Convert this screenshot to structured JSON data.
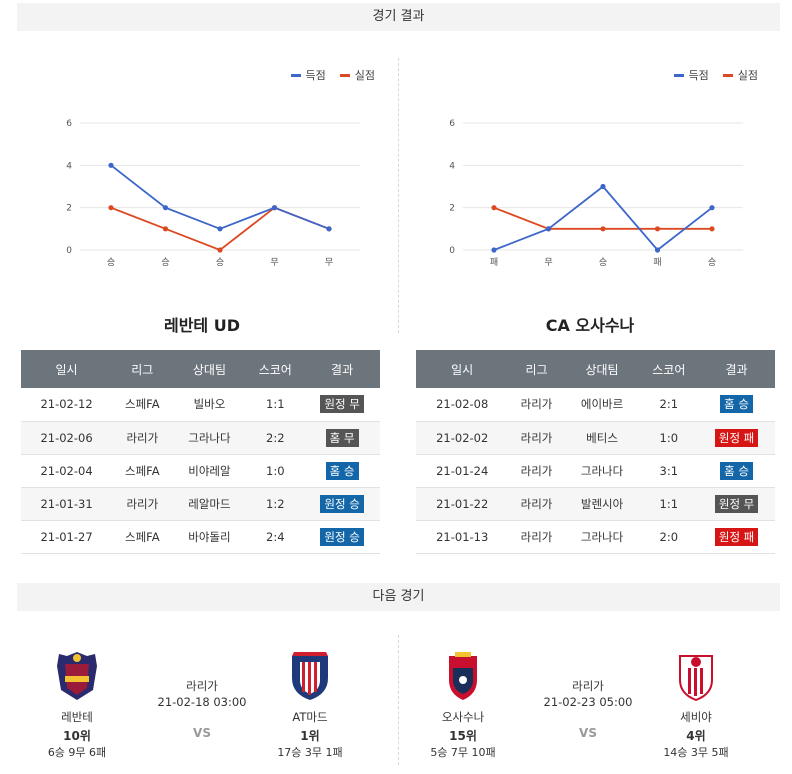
{
  "sections": {
    "results_title": "경기 결과",
    "next_title": "다음 경기"
  },
  "legend": {
    "scored": "득점",
    "conceded": "실점"
  },
  "colors": {
    "scored": "#3d66c9",
    "conceded": "#db4a22",
    "win": "#1366a8",
    "draw": "#555555",
    "loss": "#d61515"
  },
  "chart_data": [
    {
      "type": "line",
      "title": "",
      "categories": [
        "승",
        "승",
        "승",
        "무",
        "무"
      ],
      "series": [
        {
          "name": "득점",
          "values": [
            4,
            2,
            1,
            2,
            1
          ]
        },
        {
          "name": "실점",
          "values": [
            2,
            1,
            0,
            2,
            1
          ]
        }
      ],
      "yticks": [
        0,
        2,
        4,
        6
      ],
      "ylim": [
        0,
        6
      ],
      "grid": true,
      "legend": "top-right"
    },
    {
      "type": "line",
      "title": "",
      "categories": [
        "패",
        "무",
        "승",
        "패",
        "승"
      ],
      "series": [
        {
          "name": "득점",
          "values": [
            0,
            1,
            3,
            0,
            2
          ]
        },
        {
          "name": "실점",
          "values": [
            2,
            1,
            1,
            1,
            1
          ]
        }
      ],
      "yticks": [
        0,
        2,
        4,
        6
      ],
      "ylim": [
        0,
        6
      ],
      "grid": true,
      "legend": "top-right"
    }
  ],
  "teams": {
    "left": {
      "title": "레반테 UD"
    },
    "right": {
      "title": "CA 오사수나"
    }
  },
  "table_headers": [
    "일시",
    "리그",
    "상대팀",
    "스코어",
    "결과"
  ],
  "left_results": [
    {
      "date": "21-02-12",
      "league": "스페FA",
      "opponent": "빌바오",
      "score": "1:1",
      "result": "원정 무",
      "type": "draw"
    },
    {
      "date": "21-02-06",
      "league": "라리가",
      "opponent": "그라나다",
      "score": "2:2",
      "result": "홈 무",
      "type": "draw"
    },
    {
      "date": "21-02-04",
      "league": "스페FA",
      "opponent": "비야레알",
      "score": "1:0",
      "result": "홈 승",
      "type": "win"
    },
    {
      "date": "21-01-31",
      "league": "라리가",
      "opponent": "레알마드",
      "score": "1:2",
      "result": "원정 승",
      "type": "win"
    },
    {
      "date": "21-01-27",
      "league": "스페FA",
      "opponent": "바야돌리",
      "score": "2:4",
      "result": "원정 승",
      "type": "win"
    }
  ],
  "right_results": [
    {
      "date": "21-02-08",
      "league": "라리가",
      "opponent": "에이바르",
      "score": "2:1",
      "result": "홈 승",
      "type": "win"
    },
    {
      "date": "21-02-02",
      "league": "라리가",
      "opponent": "베티스",
      "score": "1:0",
      "result": "원정 패",
      "type": "loss"
    },
    {
      "date": "21-01-24",
      "league": "라리가",
      "opponent": "그라나다",
      "score": "3:1",
      "result": "홈 승",
      "type": "win"
    },
    {
      "date": "21-01-22",
      "league": "라리가",
      "opponent": "발렌시아",
      "score": "1:1",
      "result": "원정 무",
      "type": "draw"
    },
    {
      "date": "21-01-13",
      "league": "라리가",
      "opponent": "그라나다",
      "score": "2:0",
      "result": "원정 패",
      "type": "loss"
    }
  ],
  "next_matches": {
    "left": {
      "league": "라리가",
      "datetime": "21-02-18 03:00",
      "vs": "VS",
      "home": {
        "name": "레반테",
        "rank": "10위",
        "record": "6승 9무 6패",
        "crest": "levante-crest"
      },
      "away": {
        "name": "AT마드",
        "rank": "1위",
        "record": "17승 3무 1패",
        "crest": "atletico-crest"
      }
    },
    "right": {
      "league": "라리가",
      "datetime": "21-02-23 05:00",
      "vs": "VS",
      "home": {
        "name": "오사수나",
        "rank": "15위",
        "record": "5승 7무 10패",
        "crest": "osasuna-crest"
      },
      "away": {
        "name": "세비야",
        "rank": "4위",
        "record": "14승 3무 5패",
        "crest": "sevilla-crest"
      }
    }
  }
}
